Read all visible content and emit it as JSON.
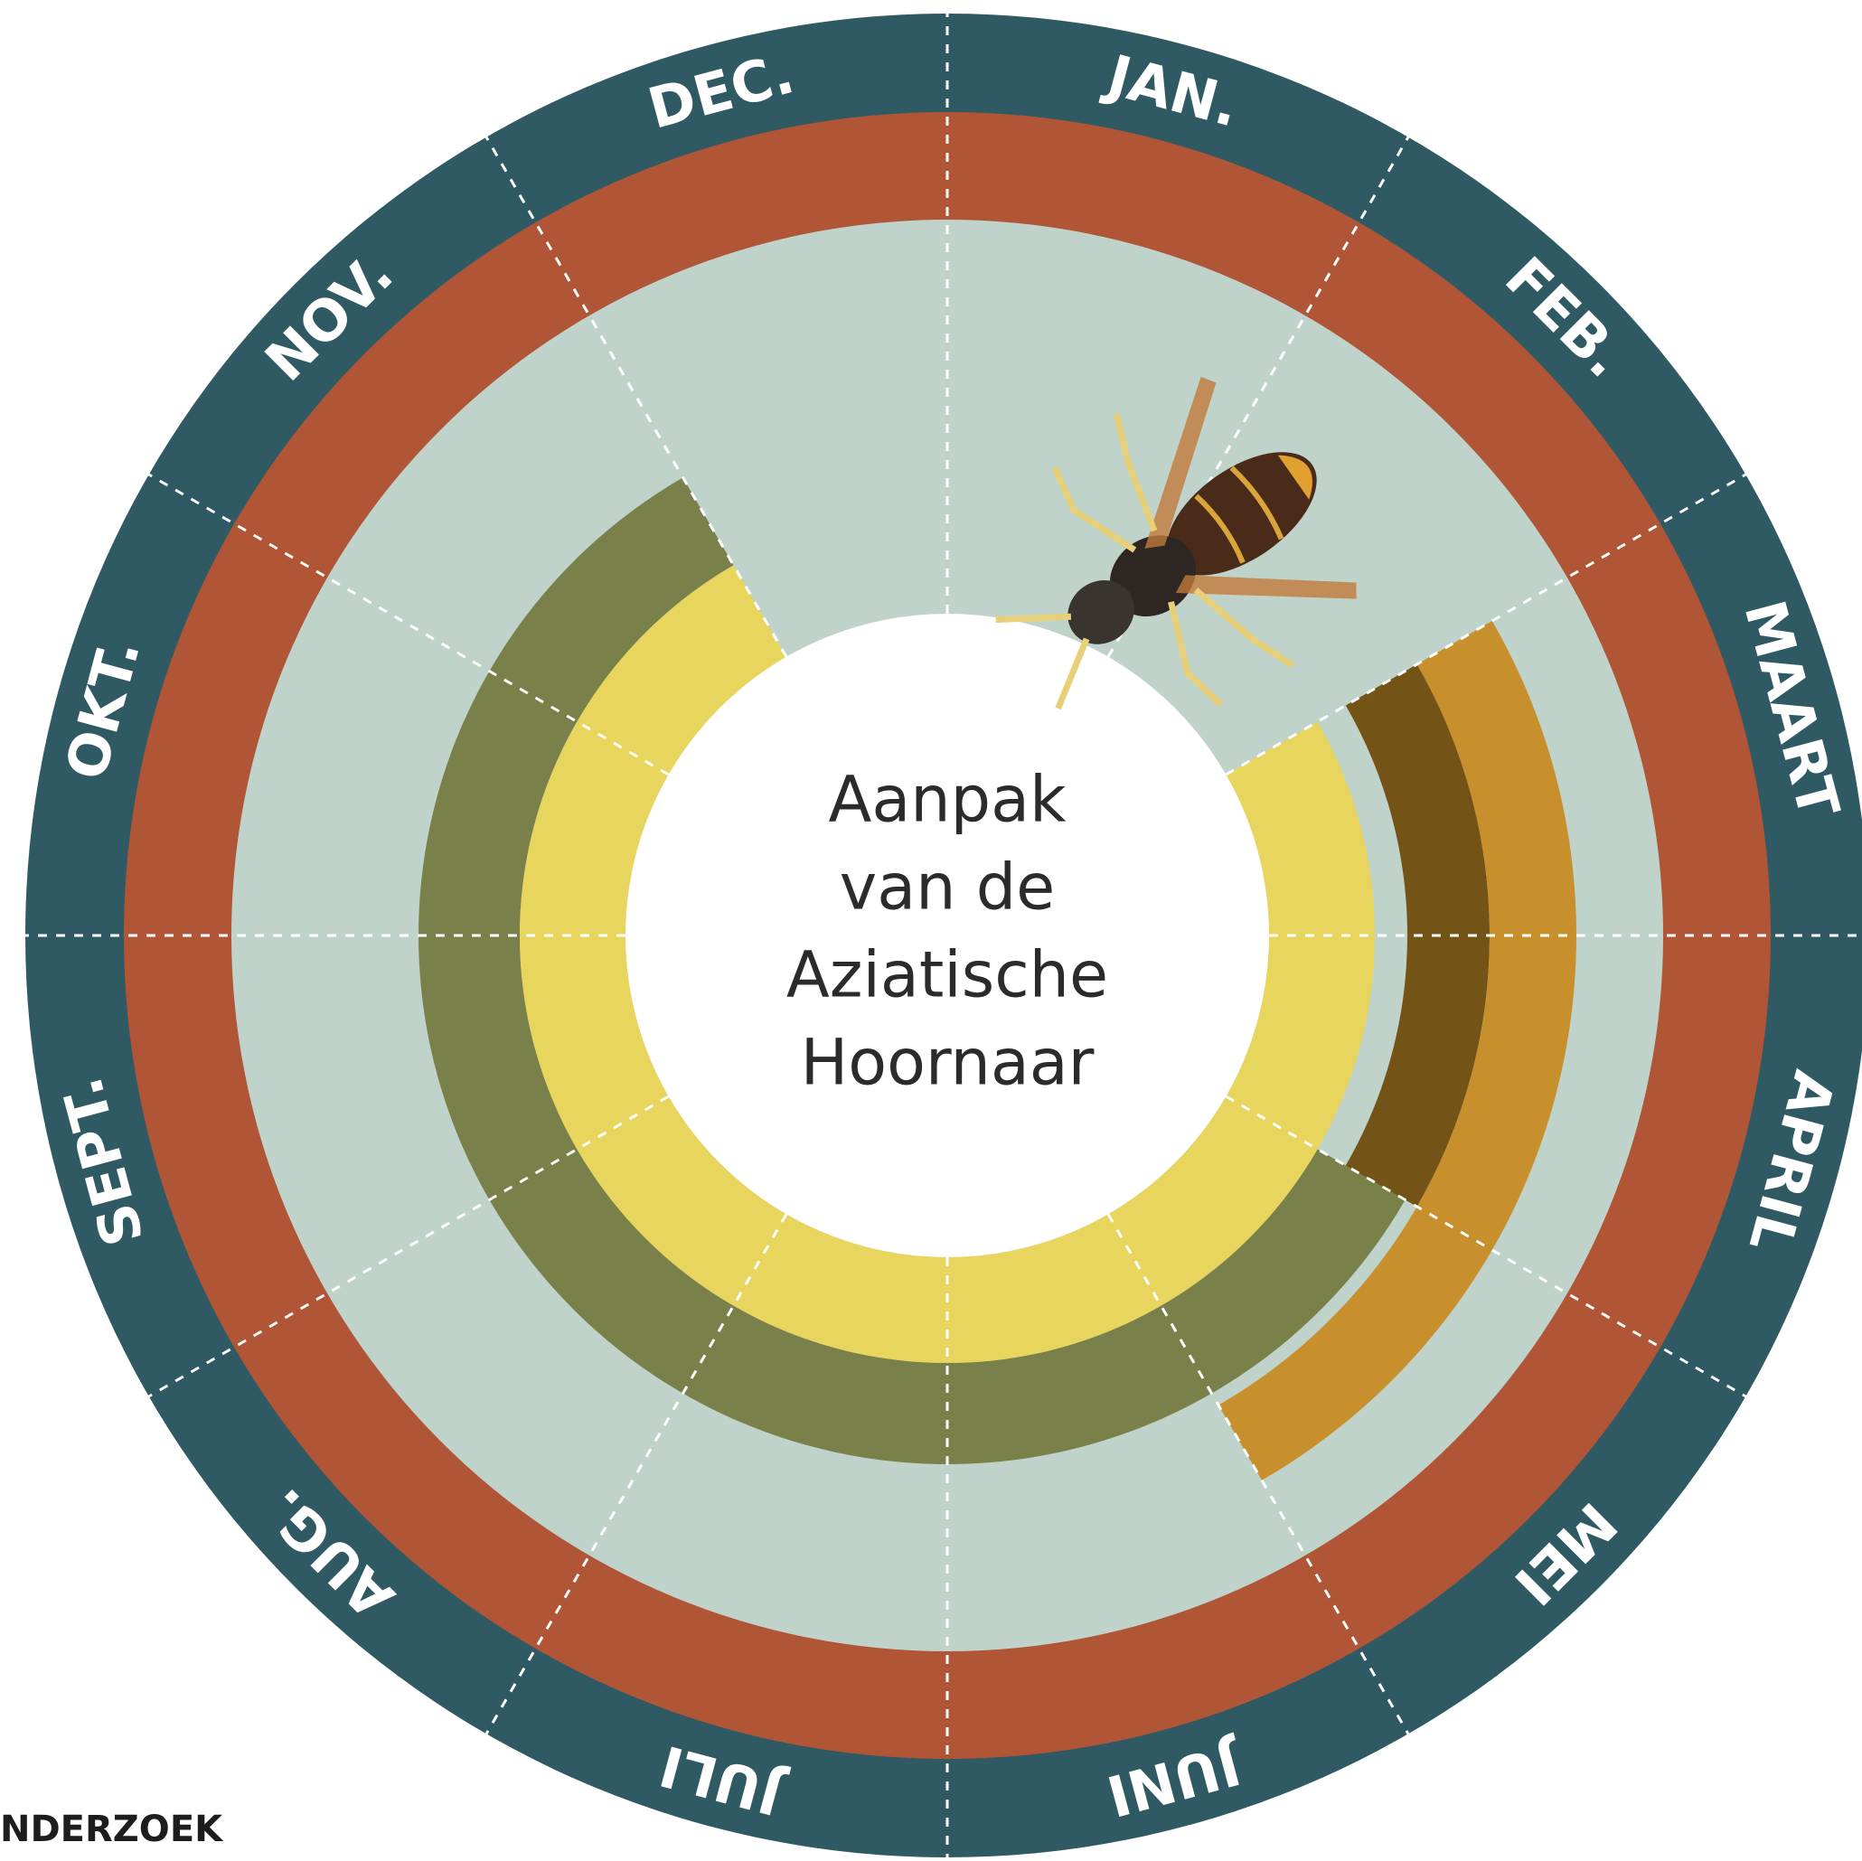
{
  "months": [
    "JAN.",
    "FEB.",
    "MAART",
    "APRIL",
    "MEI",
    "JUNI",
    "JULI",
    "AUG.",
    "SEPT.",
    "OKT.",
    "NOV.",
    "DEC."
  ],
  "center_title": [
    "Aanpak",
    "van de",
    "Aziatische",
    "Hoornaar"
  ],
  "footer": "NDERZOEK"
}
